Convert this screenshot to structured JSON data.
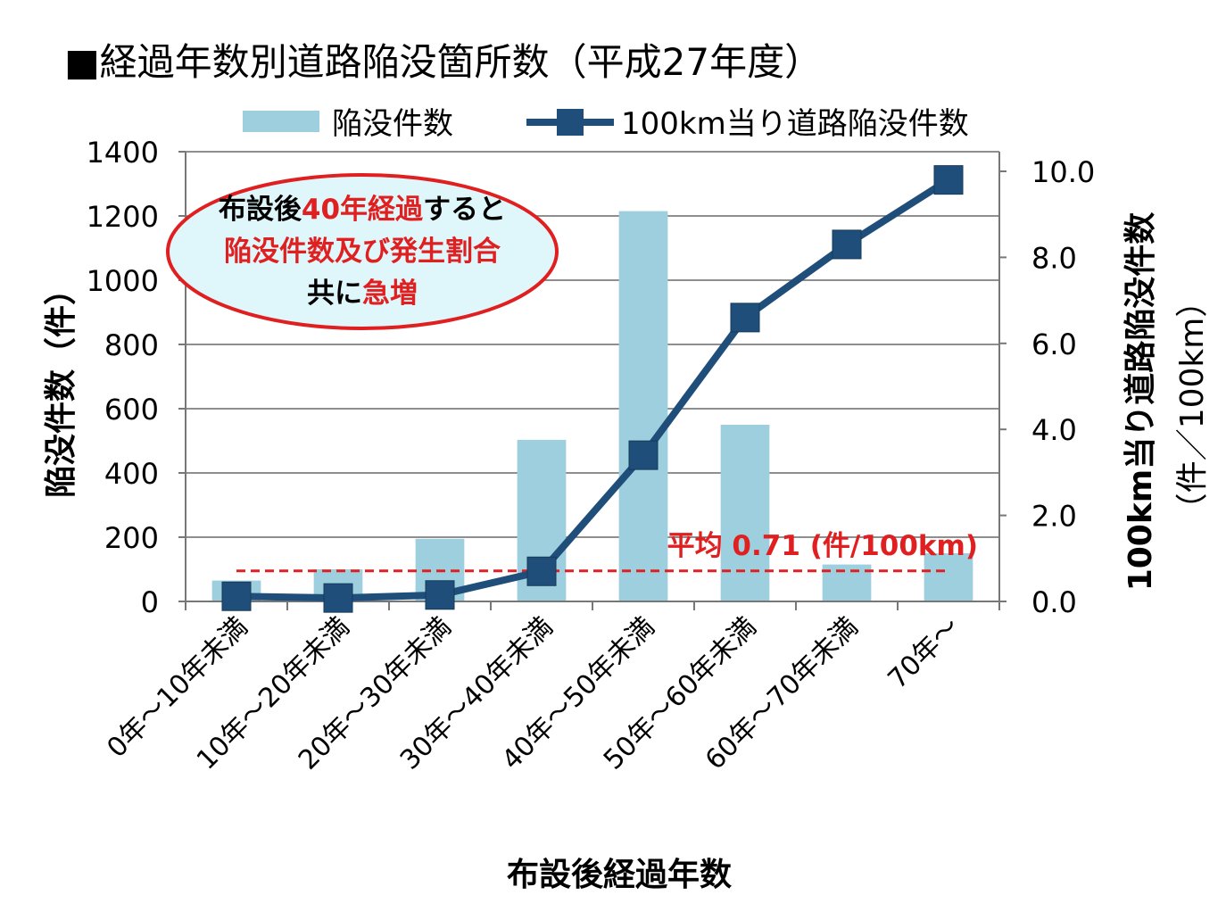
{
  "chart_data": {
    "type": "bar+line",
    "title": "■経過年数別道路陥没箇所数（平成27年度）",
    "categories": [
      "0年～10年未満",
      "10年～20年未満",
      "20年～30年未満",
      "30年～40年未満",
      "40年～50年未満",
      "50年～60年未満",
      "60年～70年未満",
      "70年～"
    ],
    "series": [
      {
        "name": "陥没件数",
        "type": "bar",
        "axis": "left",
        "values": [
          65,
          100,
          195,
          503,
          1215,
          550,
          115,
          150
        ],
        "color": "#9ecfdf"
      },
      {
        "name": "100km当り道路陥没件数",
        "type": "line",
        "axis": "right",
        "values": [
          0.12,
          0.08,
          0.15,
          0.7,
          3.4,
          6.6,
          8.3,
          9.8
        ],
        "color": "#1f4e7a"
      }
    ],
    "xlabel": "布設後経過年数",
    "ylabel": "陥没件数（件）",
    "y2label_line1": "100km当り道路陥没件数",
    "y2label_line2": "（件／100km）",
    "ylim": [
      0,
      1400
    ],
    "y2lim": [
      0,
      10
    ],
    "yticks": [
      "0",
      "200",
      "400",
      "600",
      "800",
      "1000",
      "1200",
      "1400"
    ],
    "y2ticks": [
      "0.0",
      "2.0",
      "4.0",
      "6.0",
      "8.0",
      "10.0"
    ],
    "grid": true,
    "legend": "top",
    "average": {
      "value": 0.71,
      "label": "平均 0.71 (件/100km)",
      "color": "#e02020"
    },
    "callout": {
      "line1_a": "布設後",
      "line1_b": "40年経過",
      "line1_c": "すると",
      "line2": "陥没件数及び発生割合",
      "line3_a": "共に",
      "line3_b": "急増",
      "fill": "#dff7fb",
      "stroke": "#e02020",
      "accent": "#e02020"
    }
  }
}
